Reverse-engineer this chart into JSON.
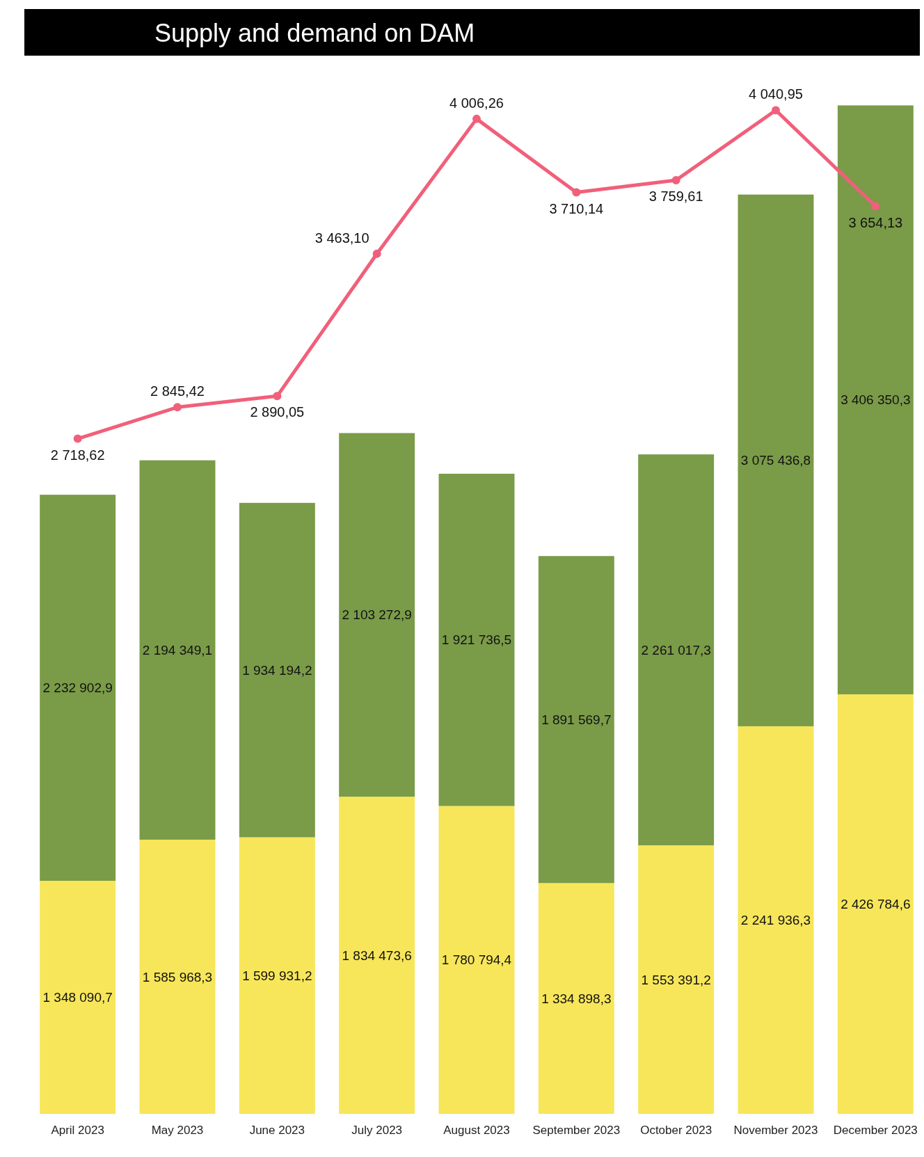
{
  "chart_data": {
    "type": "bar",
    "title": "Supply and demand on DAM",
    "stacked": true,
    "categories": [
      "April 2023",
      "May 2023",
      "June 2023",
      "July 2023",
      "August 2023",
      "September 2023",
      "October 2023",
      "November 2023",
      "December 2023"
    ],
    "series": [
      {
        "color": "#f7e65a",
        "values": [
          1348090.7,
          1585968.3,
          1599931.2,
          1834473.6,
          1780794.4,
          1334898.3,
          1553391.2,
          2241936.3,
          2426784.6
        ],
        "value_labels": [
          "1 348 090,7",
          "1 585 968,3",
          "1 599 931,2",
          "1 834 473,6",
          "1 780 794,4",
          "1 334 898,3",
          "1 553 391,2",
          "2 241 936,3",
          "2 426 784,6"
        ]
      },
      {
        "color": "#7a9b48",
        "values": [
          2232902.9,
          2194349.1,
          1934194.2,
          2103272.9,
          1921736.5,
          1891569.7,
          2261017.3,
          3075436.8,
          3406350.3
        ],
        "value_labels": [
          "2 232 902,9",
          "2 194 349,1",
          "1 934 194,2",
          "2 103 272,9",
          "1 921 736,5",
          "1 891 569,7",
          "2 261 017,3",
          "3 075 436,8",
          "3 406 350,3"
        ]
      },
      {
        "type": "line",
        "axis": "y2",
        "color": "#f0607a",
        "marker": "circle",
        "values": [
          2718.62,
          2845.42,
          2890.05,
          3463.1,
          4006.26,
          3710.14,
          3759.61,
          4040.95,
          3654.13
        ],
        "value_labels": [
          "2 718,62",
          "2 845,42",
          "2 890,05",
          "3 463,10",
          "4 006,26",
          "3 710,14",
          "3 759,61",
          "4 040,95",
          "3 654,13"
        ]
      }
    ]
  }
}
